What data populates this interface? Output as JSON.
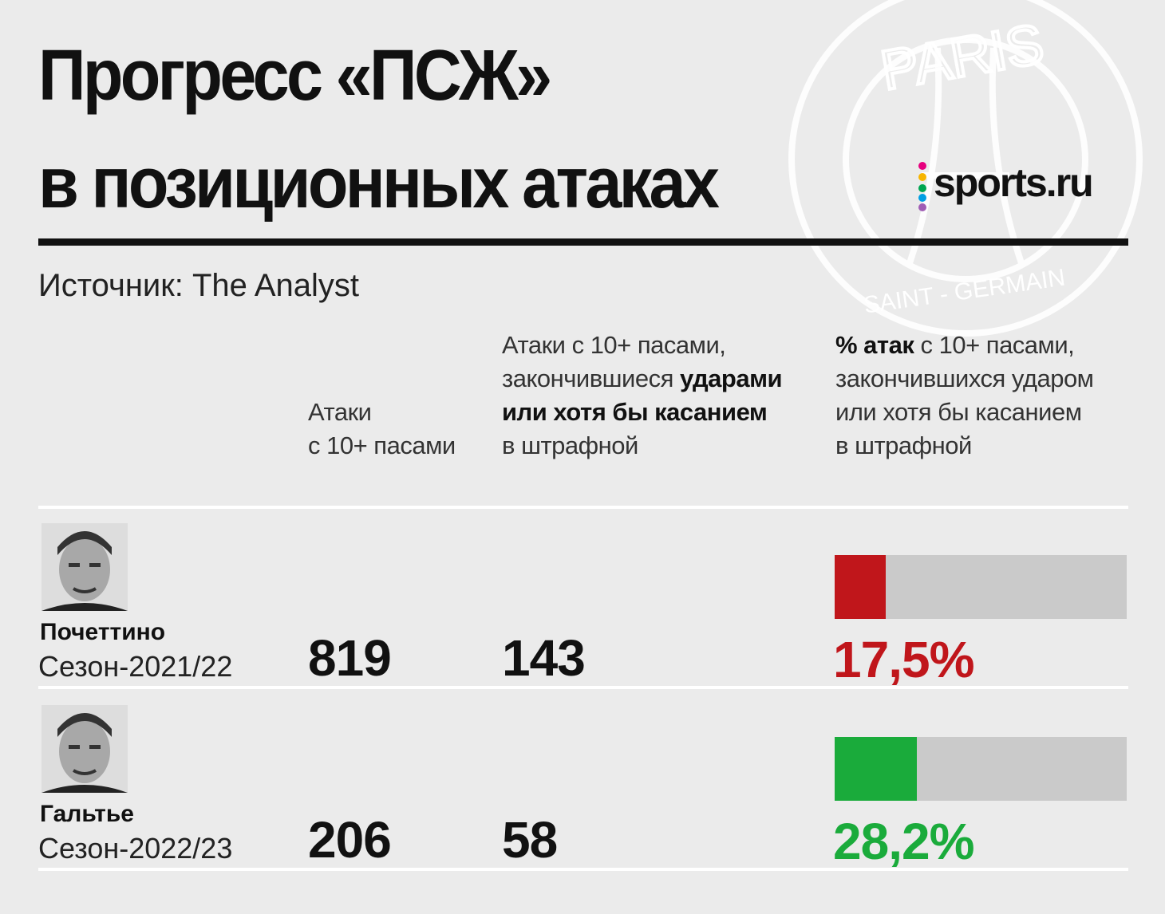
{
  "header": {
    "title_lines": [
      "Прогресс «ПСЖ»",
      "в позиционных атаках"
    ],
    "logo": "sports.ru",
    "source": "Источник: The Analyst"
  },
  "table": {
    "columns": [
      [
        [
          {
            "text": "Атаки",
            "bold": false
          }
        ],
        [
          {
            "text": "с 10+ пасами",
            "bold": false
          }
        ]
      ],
      [
        [
          {
            "text": "Атаки с 10+ пасами,",
            "bold": false
          }
        ],
        [
          {
            "text": "закончившиеся ",
            "bold": false
          },
          {
            "text": "ударами",
            "bold": true
          }
        ],
        [
          {
            "text": "или хотя бы касанием",
            "bold": true
          }
        ],
        [
          {
            "text": "в штрафной",
            "bold": false
          }
        ]
      ],
      [
        [
          {
            "text": "% атак",
            "bold": true
          },
          {
            "text": " с 10+ пасами,",
            "bold": false
          }
        ],
        [
          {
            "text": "закончившихся ударом",
            "bold": false
          }
        ],
        [
          {
            "text": "или хотя бы касанием",
            "bold": false
          }
        ],
        [
          {
            "text": "в штрафной",
            "bold": false
          }
        ]
      ]
    ],
    "rows": [
      {
        "name": "Почеттино",
        "season": "Сезон-2021/22",
        "attacks": 819,
        "attacks_with_shots": 143,
        "percent": 17.5,
        "percent_label": "17,5%",
        "color": "#c0161b"
      },
      {
        "name": "Гальтье",
        "season": "Сезон-2022/23",
        "attacks": 206,
        "attacks_with_shots": 58,
        "percent": 28.2,
        "percent_label": "28,2%",
        "color": "#1aab3b"
      }
    ],
    "percent_max": 100
  }
}
